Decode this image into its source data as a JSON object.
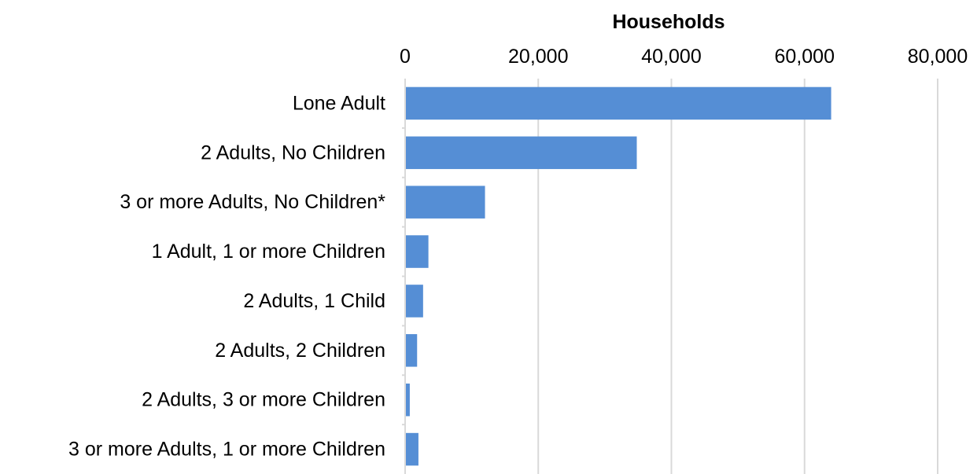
{
  "chart_data": {
    "type": "bar",
    "orientation": "horizontal",
    "title": "",
    "xlabel": "Households",
    "ylabel": "",
    "xlim": [
      0,
      80000
    ],
    "xticks": [
      0,
      20000,
      40000,
      60000,
      80000
    ],
    "xtick_labels": [
      "0",
      "20,000",
      "40,000",
      "60,000",
      "80,000"
    ],
    "x_axis_position": "top",
    "grid": true,
    "legend": "none",
    "categories": [
      "Lone Adult",
      "2 Adults, No Children",
      "3 or more Adults, No Children*",
      "1 Adult, 1 or more Children",
      "2 Adults, 1 Child",
      "2 Adults, 2 Children",
      "2 Adults, 3 or more Children",
      "3 or more Adults, 1 or more Children"
    ],
    "values": [
      64000,
      34800,
      12000,
      3500,
      2700,
      1800,
      700,
      2000
    ],
    "bar_color": "#558ed5",
    "grid_color": "#d9d9d9"
  }
}
